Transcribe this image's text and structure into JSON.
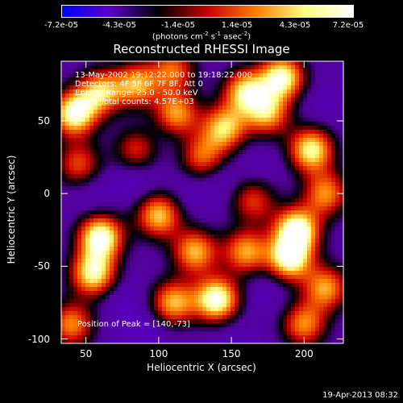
{
  "colorbar": {
    "ticks": [
      "-7.2e-05",
      "-4.3e-05",
      "-1.4e-05",
      "1.4e-05",
      "4.3e-05",
      "7.2e-05"
    ],
    "unit_main": "(photons cm",
    "unit_sup1": "-2",
    "unit_mid": " s",
    "unit_sup2": "-1",
    "unit_mid2": " asec",
    "unit_sup3": "-2",
    "unit_end": ")",
    "colors": [
      "#0000ff",
      "#5a00c8",
      "#000000",
      "#c80000",
      "#ff8000",
      "#ffff80",
      "#ffffff"
    ]
  },
  "info": {
    "time_range": "13-May-2002 19:12:22.000 to 19:18:22.000",
    "detectors": "Detectors: 4F 5F 6F 7F 8F, Att 0",
    "energy": "Energy Range: 25.0 - 50.0 keV",
    "clean": "Clean    Total counts: 4.57E+03",
    "peak": "Position of Peak = [140,-73]"
  },
  "footer": {
    "date": "19-Apr-2013 08:32"
  },
  "chart_data": {
    "type": "heatmap",
    "title": "Reconstructed RHESSI Image",
    "xlabel": "Heliocentric X (arcsec)",
    "ylabel": "Heliocentric Y (arcsec)",
    "xlim": [
      33,
      227
    ],
    "ylim": [
      -103,
      91
    ],
    "xticks": [
      50,
      100,
      150,
      200
    ],
    "yticks": [
      -100,
      -50,
      0,
      50
    ],
    "xtick_labels": [
      "50",
      "100",
      "150",
      "200"
    ],
    "ytick_labels": [
      "-100",
      "-50",
      "0",
      "50"
    ],
    "background_level": -0.3,
    "sources": [
      {
        "x": 140,
        "y": -73,
        "level": 1.0
      },
      {
        "x": 60,
        "y": -30,
        "level": 1.0
      },
      {
        "x": 55,
        "y": -55,
        "level": 0.85
      },
      {
        "x": 42,
        "y": 55,
        "level": 0.95
      },
      {
        "x": 100,
        "y": -15,
        "level": 0.7
      },
      {
        "x": 85,
        "y": 75,
        "level": 0.6
      },
      {
        "x": 60,
        "y": 70,
        "level": 0.65
      },
      {
        "x": 112,
        "y": 55,
        "level": 0.6
      },
      {
        "x": 145,
        "y": 45,
        "level": 0.7
      },
      {
        "x": 160,
        "y": 70,
        "level": 0.75
      },
      {
        "x": 175,
        "y": 55,
        "level": 0.6
      },
      {
        "x": 185,
        "y": 80,
        "level": 0.9
      },
      {
        "x": 205,
        "y": 30,
        "level": 0.85
      },
      {
        "x": 215,
        "y": 0,
        "level": 0.55
      },
      {
        "x": 195,
        "y": -25,
        "level": 1.0
      },
      {
        "x": 190,
        "y": -45,
        "level": 0.9
      },
      {
        "x": 160,
        "y": -40,
        "level": 0.6
      },
      {
        "x": 125,
        "y": -40,
        "level": 0.65
      },
      {
        "x": 110,
        "y": -75,
        "level": 0.65
      },
      {
        "x": 40,
        "y": -90,
        "level": 0.55
      },
      {
        "x": 200,
        "y": -90,
        "level": 0.55
      },
      {
        "x": 215,
        "y": -65,
        "level": 0.6
      },
      {
        "x": 130,
        "y": 25,
        "level": 0.45
      },
      {
        "x": 45,
        "y": 20,
        "level": 0.4
      },
      {
        "x": 85,
        "y": 30,
        "level": 0.35
      },
      {
        "x": 165,
        "y": -5,
        "level": 0.35
      },
      {
        "x": 110,
        "y": 85,
        "level": 0.45
      }
    ],
    "cold_spots": [
      {
        "x": 85,
        "y": 10,
        "level": -0.5
      },
      {
        "x": 55,
        "y": 0,
        "level": -0.45
      },
      {
        "x": 120,
        "y": 0,
        "level": -0.4
      },
      {
        "x": 140,
        "y": 10,
        "level": -0.45
      },
      {
        "x": 170,
        "y": 20,
        "level": -0.4
      },
      {
        "x": 175,
        "y": -65,
        "level": -0.45
      },
      {
        "x": 150,
        "y": -95,
        "level": -0.4
      },
      {
        "x": 90,
        "y": -95,
        "level": -0.5
      },
      {
        "x": 75,
        "y": -75,
        "level": -0.45
      },
      {
        "x": 210,
        "y": 60,
        "level": -0.4
      },
      {
        "x": 100,
        "y": 40,
        "level": -0.4
      }
    ]
  }
}
